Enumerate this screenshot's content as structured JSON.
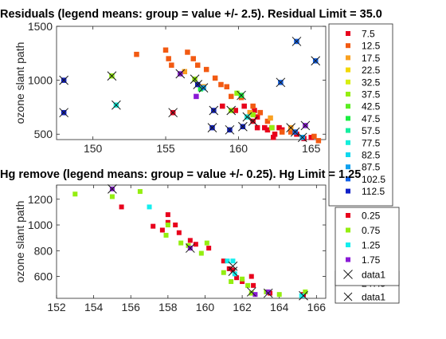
{
  "chart_data": [
    {
      "type": "scatter",
      "title": "Residuals (legend means: group = value +/- 2.5). Residual Limit = 35.0",
      "xlabel": "",
      "ylabel": "ozone slant path",
      "xlim": [
        147.5,
        166
      ],
      "ylim": [
        450,
        1500
      ],
      "xticks": [
        150,
        155,
        160,
        165
      ],
      "yticks": [
        500,
        1000,
        1500
      ],
      "grid": false,
      "legend_placement": "outside-right",
      "legend": [
        {
          "label": "7.5",
          "color": "#e8001c",
          "marker": "square"
        },
        {
          "label": "12.5",
          "color": "#f25a12",
          "marker": "square"
        },
        {
          "label": "17.5",
          "color": "#f9a020",
          "marker": "square"
        },
        {
          "label": "22.5",
          "color": "#f3d800",
          "marker": "square"
        },
        {
          "label": "32.5",
          "color": "#d6ee10",
          "marker": "square"
        },
        {
          "label": "37.5",
          "color": "#94ee10",
          "marker": "square"
        },
        {
          "label": "42.5",
          "color": "#5aee22",
          "marker": "square"
        },
        {
          "label": "47.5",
          "color": "#1aee40",
          "marker": "square"
        },
        {
          "label": "57.5",
          "color": "#14eea0",
          "marker": "square"
        },
        {
          "label": "77.5",
          "color": "#14eeda",
          "marker": "square"
        },
        {
          "label": "82.5",
          "color": "#10d8ee",
          "marker": "square"
        },
        {
          "label": "87.5",
          "color": "#10a0ee",
          "marker": "square"
        },
        {
          "label": "102.5",
          "color": "#1060e8",
          "marker": "square"
        },
        {
          "label": "112.5",
          "color": "#1020c8",
          "marker": "square"
        }
      ],
      "series": [
        {
          "name": "7.5",
          "color": "#e8001c",
          "points": [
            [
              155.5,
              700
            ],
            [
              158.9,
              760
            ],
            [
              159.8,
              720
            ],
            [
              160.4,
              760
            ],
            [
              160.8,
              700
            ],
            [
              161.0,
              620
            ],
            [
              161.1,
              720
            ],
            [
              161.3,
              660
            ],
            [
              161.5,
              700
            ],
            [
              161.3,
              560
            ],
            [
              161.8,
              560
            ],
            [
              162.0,
              540
            ],
            [
              162.5,
              500
            ],
            [
              162.8,
              560
            ],
            [
              163.0,
              540
            ],
            [
              164.0,
              500
            ],
            [
              164.5,
              460
            ],
            [
              165.0,
              470
            ],
            [
              162.4,
              470
            ]
          ]
        },
        {
          "name": "12.5",
          "color": "#f25a12",
          "points": [
            [
              153.0,
              1240
            ],
            [
              155.0,
              1280
            ],
            [
              155.2,
              1200
            ],
            [
              155.4,
              1140
            ],
            [
              156.5,
              1260
            ],
            [
              156.9,
              1200
            ],
            [
              157.2,
              1140
            ],
            [
              157.8,
              1100
            ],
            [
              158.4,
              1020
            ],
            [
              158.8,
              960
            ],
            [
              159.2,
              940
            ],
            [
              159.5,
              850
            ],
            [
              160.2,
              840
            ],
            [
              161.0,
              760
            ],
            [
              161.5,
              700
            ],
            [
              162.0,
              620
            ],
            [
              162.3,
              560
            ],
            [
              163.0,
              520
            ],
            [
              163.6,
              520
            ],
            [
              165.2,
              480
            ],
            [
              165.5,
              440
            ]
          ]
        },
        {
          "name": "17.5",
          "color": "#f9a020",
          "points": [
            [
              156.3,
              1080
            ],
            [
              157.6,
              940
            ],
            [
              160.8,
              700
            ],
            [
              162.2,
              650
            ],
            [
              163.6,
              560
            ]
          ]
        },
        {
          "name": "37.5",
          "color": "#94ee10",
          "points": [
            [
              151.3,
              1040
            ],
            [
              157.0,
              1010
            ],
            [
              159.5,
              720
            ],
            [
              159.9,
              880
            ],
            [
              161.0,
              680
            ],
            [
              162.3,
              560
            ]
          ]
        },
        {
          "name": "47.5",
          "color": "#1aee40",
          "points": [
            [
              157.4,
              920
            ],
            [
              160.2,
              860
            ]
          ]
        },
        {
          "name": "77.5",
          "color": "#14eeda",
          "points": [
            [
              151.6,
              770
            ],
            [
              160.6,
              660
            ]
          ]
        },
        {
          "name": "87.5",
          "color": "#10a0ee",
          "points": [
            [
              157.6,
              930
            ],
            [
              164.4,
              470
            ]
          ]
        },
        {
          "name": "102.5",
          "color": "#1060e8",
          "points": [
            [
              162.9,
              980
            ],
            [
              164.0,
              1360
            ],
            [
              165.3,
              1180
            ],
            [
              163.9,
              520
            ]
          ]
        },
        {
          "name": "112.5",
          "color": "#1020c8",
          "points": [
            [
              148.0,
              1000
            ],
            [
              148.0,
              700
            ],
            [
              157.2,
              960
            ],
            [
              158.2,
              560
            ],
            [
              158.3,
              720
            ],
            [
              159.4,
              540
            ],
            [
              160.3,
              570
            ]
          ]
        },
        {
          "name": "purple",
          "color": "#8a1ad6",
          "points": [
            [
              156.0,
              1060
            ],
            [
              157.1,
              850
            ],
            [
              164.6,
              580
            ]
          ]
        }
      ],
      "cross_markers": [
        [
          148.0,
          1000
        ],
        [
          148.0,
          700
        ],
        [
          151.3,
          1040
        ],
        [
          151.6,
          770
        ],
        [
          155.5,
          700
        ],
        [
          156.0,
          1060
        ],
        [
          157.0,
          1010
        ],
        [
          157.2,
          960
        ],
        [
          157.6,
          930
        ],
        [
          158.2,
          560
        ],
        [
          158.3,
          720
        ],
        [
          159.4,
          540
        ],
        [
          159.5,
          720
        ],
        [
          160.2,
          860
        ],
        [
          160.3,
          570
        ],
        [
          160.6,
          660
        ],
        [
          161.0,
          620
        ],
        [
          162.9,
          980
        ],
        [
          163.6,
          560
        ],
        [
          163.9,
          520
        ],
        [
          164.0,
          1360
        ],
        [
          164.4,
          470
        ],
        [
          164.6,
          580
        ],
        [
          165.3,
          1180
        ]
      ]
    },
    {
      "type": "scatter",
      "title": "Hg remove (legend means: group = value +/- 0.25). Hg Limit = 1.25",
      "xlabel": "",
      "ylabel": "ozone slant path",
      "xlim": [
        152,
        166.5
      ],
      "ylim": [
        430,
        1310
      ],
      "xticks": [
        152,
        154,
        156,
        158,
        160,
        162,
        164,
        166
      ],
      "yticks": [
        600,
        800,
        1000,
        1200
      ],
      "grid": false,
      "legend_placement": "inside-right",
      "legend": [
        {
          "label": "0.25",
          "color": "#e8001c",
          "marker": "square"
        },
        {
          "label": "0.75",
          "color": "#94ee10",
          "marker": "square"
        },
        {
          "label": "1.25",
          "color": "#14eeee",
          "marker": "square"
        },
        {
          "label": "1.75",
          "color": "#8a1ad6",
          "marker": "square"
        },
        {
          "label": "data1",
          "color": "#000000",
          "marker": "x"
        }
      ],
      "series": [
        {
          "name": "0.25",
          "color": "#e8001c",
          "points": [
            [
              155.5,
              1140
            ],
            [
              157.2,
              990
            ],
            [
              157.7,
              960
            ],
            [
              158.0,
              1080
            ],
            [
              158.0,
              1020
            ],
            [
              158.4,
              1000
            ],
            [
              158.6,
              940
            ],
            [
              159.2,
              880
            ],
            [
              159.5,
              850
            ],
            [
              160.2,
              820
            ],
            [
              161.0,
              720
            ],
            [
              161.3,
              660
            ],
            [
              161.5,
              650
            ],
            [
              161.7,
              590
            ],
            [
              162.0,
              560
            ],
            [
              162.5,
              600
            ],
            [
              162.6,
              530
            ],
            [
              163.5,
              470
            ],
            [
              165.3,
              460
            ]
          ]
        },
        {
          "name": "0.75",
          "color": "#94ee10",
          "points": [
            [
              153.0,
              1240
            ],
            [
              155.0,
              1220
            ],
            [
              156.5,
              1260
            ],
            [
              157.9,
              920
            ],
            [
              158.0,
              1000
            ],
            [
              158.7,
              860
            ],
            [
              159.1,
              840
            ],
            [
              159.8,
              780
            ],
            [
              160.1,
              860
            ],
            [
              161.0,
              630
            ],
            [
              161.4,
              560
            ],
            [
              162.0,
              580
            ],
            [
              162.3,
              530
            ],
            [
              162.5,
              470
            ],
            [
              163.3,
              480
            ],
            [
              164.0,
              460
            ],
            [
              165.4,
              480
            ]
          ]
        },
        {
          "name": "1.25",
          "color": "#14eeee",
          "points": [
            [
              157.0,
              1140
            ],
            [
              161.2,
              720
            ],
            [
              161.5,
              720
            ],
            [
              161.6,
              620
            ],
            [
              165.2,
              450
            ]
          ]
        },
        {
          "name": "1.75",
          "color": "#8a1ad6",
          "points": [
            [
              155.0,
              1280
            ],
            [
              159.2,
              820
            ],
            [
              162.7,
              460
            ],
            [
              163.4,
              480
            ]
          ]
        }
      ],
      "cross_markers": [
        [
          155.0,
          1280
        ],
        [
          159.2,
          820
        ],
        [
          161.5,
          680
        ],
        [
          161.5,
          640
        ],
        [
          162.5,
          480
        ],
        [
          163.4,
          470
        ],
        [
          165.3,
          450
        ]
      ]
    }
  ],
  "stray_legend": [
    {
      "label": "247.5",
      "color": "#e8105a",
      "marker": "square"
    },
    {
      "label": "data1",
      "color": "#000000",
      "marker": "x"
    }
  ]
}
